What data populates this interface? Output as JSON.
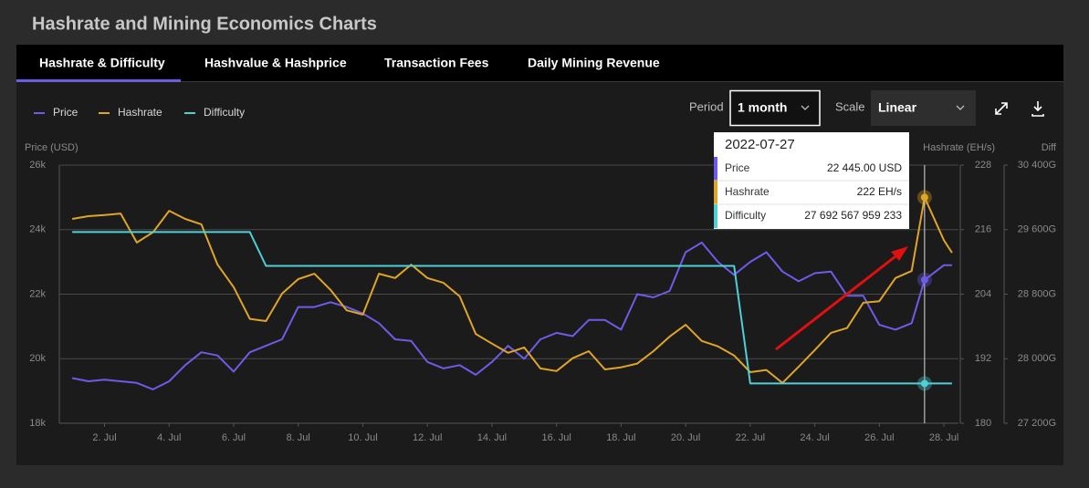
{
  "header": {
    "title": "Hashrate and Mining Economics Charts"
  },
  "tabs": [
    "Hashrate & Difficulty",
    "Hashvalue & Hashprice",
    "Transaction Fees",
    "Daily Mining Revenue"
  ],
  "controls": {
    "period_label": "Period",
    "period": "1 month",
    "scale_label": "Scale",
    "scale": "Linear"
  },
  "chart_data": {
    "type": "line",
    "ylabel": "Price (USD)",
    "y2label": "Hashrate (EH/s)",
    "y3label": "Diff",
    "x": [
      1,
      1.5,
      2,
      2.5,
      3,
      3.5,
      4,
      4.5,
      5,
      5.5,
      6,
      6.5,
      7,
      7.5,
      8,
      8.5,
      9,
      9.5,
      10,
      10.5,
      11,
      11.5,
      12,
      12.5,
      13,
      13.5,
      14,
      14.5,
      15,
      15.5,
      16,
      16.5,
      17,
      17.5,
      18,
      18.5,
      19,
      19.5,
      20,
      20.5,
      21,
      21.5,
      22,
      22.5,
      23,
      23.5,
      24,
      24.5,
      25,
      25.5,
      26,
      26.5,
      27,
      27.4,
      28,
      28.25
    ],
    "xlim": [
      0.6,
      28.45
    ],
    "xticks": [
      {
        "value": 2,
        "label": "2. Jul"
      },
      {
        "value": 4,
        "label": "4. Jul"
      },
      {
        "value": 6,
        "label": "6. Jul"
      },
      {
        "value": 8,
        "label": "8. Jul"
      },
      {
        "value": 10,
        "label": "10. Jul"
      },
      {
        "value": 12,
        "label": "12. Jul"
      },
      {
        "value": 14,
        "label": "14. Jul"
      },
      {
        "value": 16,
        "label": "16. Jul"
      },
      {
        "value": 18,
        "label": "18. Jul"
      },
      {
        "value": 20,
        "label": "20. Jul"
      },
      {
        "value": 22,
        "label": "22. Jul"
      },
      {
        "value": 24,
        "label": "24. Jul"
      },
      {
        "value": 26,
        "label": "26. Jul"
      },
      {
        "value": 28,
        "label": "28. Jul"
      }
    ],
    "ylim": [
      18000,
      26000
    ],
    "yticks": [
      {
        "value": 18000,
        "label": "18k"
      },
      {
        "value": 20000,
        "label": "20k"
      },
      {
        "value": 22000,
        "label": "22k"
      },
      {
        "value": 24000,
        "label": "24k"
      },
      {
        "value": 26000,
        "label": "26k"
      }
    ],
    "y2lim": [
      180,
      228
    ],
    "y2ticks": [
      180,
      192,
      204,
      216,
      228
    ],
    "y3lim": [
      27200,
      30400
    ],
    "y3ticks": [
      {
        "value": 27200,
        "label": "27 200G"
      },
      {
        "value": 28000,
        "label": "28 000G"
      },
      {
        "value": 28800,
        "label": "28 800G"
      },
      {
        "value": 29600,
        "label": "29 600G"
      },
      {
        "value": 30400,
        "label": "30 400G"
      }
    ],
    "grid": true,
    "series": [
      {
        "name": "Price",
        "color": "#6d5ce8",
        "axis": "y",
        "values": [
          19400,
          19300,
          19350,
          19300,
          19250,
          19050,
          19300,
          19800,
          20200,
          20100,
          19600,
          20200,
          20400,
          20600,
          21600,
          21600,
          21750,
          21600,
          21400,
          21100,
          20600,
          20550,
          19900,
          19700,
          19800,
          19500,
          19900,
          20400,
          20000,
          20600,
          20800,
          20700,
          21200,
          21200,
          20900,
          22000,
          21900,
          22100,
          23300,
          23600,
          23000,
          22600,
          23000,
          23300,
          22700,
          22400,
          22650,
          22700,
          21950,
          21950,
          21050,
          20900,
          21100,
          22445,
          22900,
          22900
        ]
      },
      {
        "name": "Hashrate",
        "color": "#e0a526",
        "axis": "y2",
        "values": [
          218,
          218.5,
          218.7,
          219,
          213.6,
          215.5,
          219.5,
          218,
          217,
          209.5,
          205.3,
          199.4,
          199,
          204.1,
          206.8,
          207.8,
          204.8,
          201,
          200.2,
          207.8,
          207,
          209.5,
          207,
          206.1,
          203.6,
          196.6,
          194.8,
          193.1,
          194.1,
          190.2,
          189.7,
          192.1,
          193.4,
          190,
          190.4,
          191.1,
          193.4,
          196.1,
          198.3,
          195.3,
          194.3,
          192.6,
          189.5,
          189.9,
          187.5,
          190.5,
          193.6,
          196.8,
          197.7,
          202.4,
          202.7,
          207,
          208.3,
          222,
          214,
          211.7
        ]
      },
      {
        "name": "Difficulty",
        "color": "#4fcfd6",
        "axis": "y3",
        "values": [
          29570,
          29570,
          29570,
          29570,
          29570,
          29570,
          29570,
          29570,
          29570,
          29570,
          29570,
          29570,
          29150,
          29150,
          29150,
          29150,
          29150,
          29150,
          29150,
          29150,
          29150,
          29150,
          29150,
          29150,
          29150,
          29150,
          29150,
          29150,
          29150,
          29150,
          29150,
          29150,
          29150,
          29150,
          29150,
          29150,
          29150,
          29150,
          29150,
          29150,
          29150,
          29150,
          27692.57,
          27692.57,
          27692.57,
          27692.57,
          27692.57,
          27692.57,
          27692.57,
          27692.57,
          27692.57,
          27692.57,
          27692.57,
          27692.57,
          27692.57,
          27692.57
        ]
      }
    ],
    "tooltip": {
      "date": "2022-07-27",
      "rows": [
        {
          "name": "Price",
          "value": "22 445.00 USD"
        },
        {
          "name": "Hashrate",
          "value": "222 EH/s"
        },
        {
          "name": "Difficulty",
          "value": "27 692 567 959 233"
        }
      ]
    }
  }
}
